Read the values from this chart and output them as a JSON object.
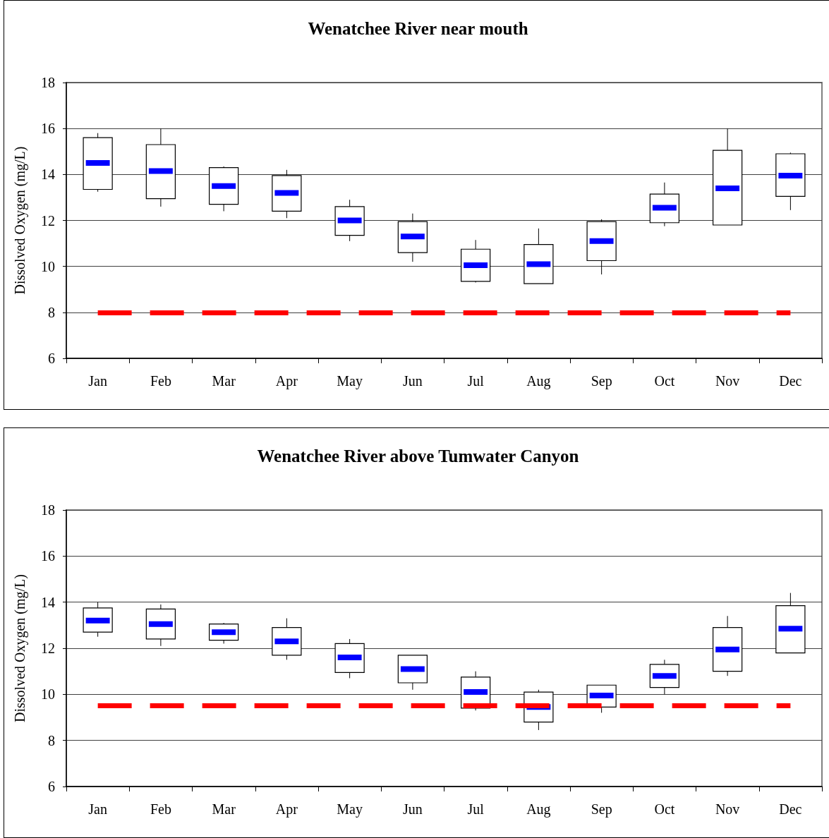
{
  "chart_data": [
    {
      "type": "box",
      "title": "Wenatchee River near mouth",
      "ylabel": "Dissolved Oxygen (mg/L)",
      "categories": [
        "Jan",
        "Feb",
        "Mar",
        "Apr",
        "May",
        "Jun",
        "Jul",
        "Aug",
        "Sep",
        "Oct",
        "Nov",
        "Dec"
      ],
      "series": [
        {
          "color": "#ffffff",
          "boxes": [
            {
              "low": 13.25,
              "q1": 13.35,
              "median": 14.5,
              "q3": 15.6,
              "high": 15.8
            },
            {
              "low": 12.6,
              "q1": 12.95,
              "median": 14.15,
              "q3": 15.3,
              "high": 16.0
            },
            {
              "low": 12.4,
              "q1": 12.7,
              "median": 13.5,
              "q3": 14.3,
              "high": 14.35
            },
            {
              "low": 12.1,
              "q1": 12.4,
              "median": 13.2,
              "q3": 13.95,
              "high": 14.2
            },
            {
              "low": 11.1,
              "q1": 11.35,
              "median": 12.0,
              "q3": 12.6,
              "high": 12.9
            },
            {
              "low": 10.2,
              "q1": 10.6,
              "median": 11.3,
              "q3": 11.95,
              "high": 12.3
            },
            {
              "low": 9.3,
              "q1": 9.35,
              "median": 10.05,
              "q3": 10.75,
              "high": 11.15
            },
            {
              "low": 9.25,
              "q1": 9.25,
              "median": 10.1,
              "q3": 10.95,
              "high": 11.65
            },
            {
              "low": 9.65,
              "q1": 10.25,
              "median": 11.1,
              "q3": 11.95,
              "high": 12.05
            },
            {
              "low": 11.75,
              "q1": 11.9,
              "median": 12.55,
              "q3": 13.15,
              "high": 13.65
            },
            {
              "low": 11.8,
              "q1": 11.8,
              "median": 13.4,
              "q3": 15.05,
              "high": 16.0
            },
            {
              "low": 12.45,
              "q1": 13.05,
              "median": 13.95,
              "q3": 14.9,
              "high": 14.95
            }
          ]
        }
      ],
      "ylim": [
        6,
        18
      ],
      "yticks": [
        6,
        8,
        10,
        12,
        14,
        16,
        18
      ],
      "grid": "y",
      "ref_lines": [
        {
          "axis": "y",
          "value": 8,
          "color": "#ff0000",
          "line_style": "dashed"
        }
      ]
    },
    {
      "type": "box",
      "title": "Wenatchee River above Tumwater Canyon",
      "ylabel": "Dissolved Oxygen (mg/L)",
      "categories": [
        "Jan",
        "Feb",
        "Mar",
        "Apr",
        "May",
        "Jun",
        "Jul",
        "Aug",
        "Sep",
        "Oct",
        "Nov",
        "Dec"
      ],
      "series": [
        {
          "color": "#ffffff",
          "boxes": [
            {
              "low": 12.5,
              "q1": 12.7,
              "median": 13.2,
              "q3": 13.75,
              "high": 14.0
            },
            {
              "low": 12.1,
              "q1": 12.4,
              "median": 13.05,
              "q3": 13.7,
              "high": 13.9
            },
            {
              "low": 12.2,
              "q1": 12.35,
              "median": 12.7,
              "q3": 13.05,
              "high": 13.1
            },
            {
              "low": 11.5,
              "q1": 11.7,
              "median": 12.3,
              "q3": 12.9,
              "high": 13.3
            },
            {
              "low": 10.7,
              "q1": 10.95,
              "median": 11.6,
              "q3": 12.2,
              "high": 12.4
            },
            {
              "low": 10.2,
              "q1": 10.5,
              "median": 11.1,
              "q3": 11.7,
              "high": 11.7
            },
            {
              "low": 9.3,
              "q1": 9.4,
              "median": 10.1,
              "q3": 10.75,
              "high": 11.0
            },
            {
              "low": 8.45,
              "q1": 8.8,
              "median": 9.45,
              "q3": 10.1,
              "high": 10.2
            },
            {
              "low": 9.2,
              "q1": 9.45,
              "median": 9.95,
              "q3": 10.4,
              "high": 10.4
            },
            {
              "low": 10.0,
              "q1": 10.3,
              "median": 10.8,
              "q3": 11.3,
              "high": 11.5
            },
            {
              "low": 10.8,
              "q1": 11.0,
              "median": 11.95,
              "q3": 12.9,
              "high": 13.4
            },
            {
              "low": 11.8,
              "q1": 11.8,
              "median": 12.85,
              "q3": 13.85,
              "high": 14.4
            }
          ]
        }
      ],
      "ylim": [
        6,
        18
      ],
      "yticks": [
        6,
        8,
        10,
        12,
        14,
        16,
        18
      ],
      "grid": "y",
      "ref_lines": [
        {
          "axis": "y",
          "value": 9.5,
          "color": "#ff0000",
          "line_style": "dashed"
        }
      ]
    }
  ]
}
